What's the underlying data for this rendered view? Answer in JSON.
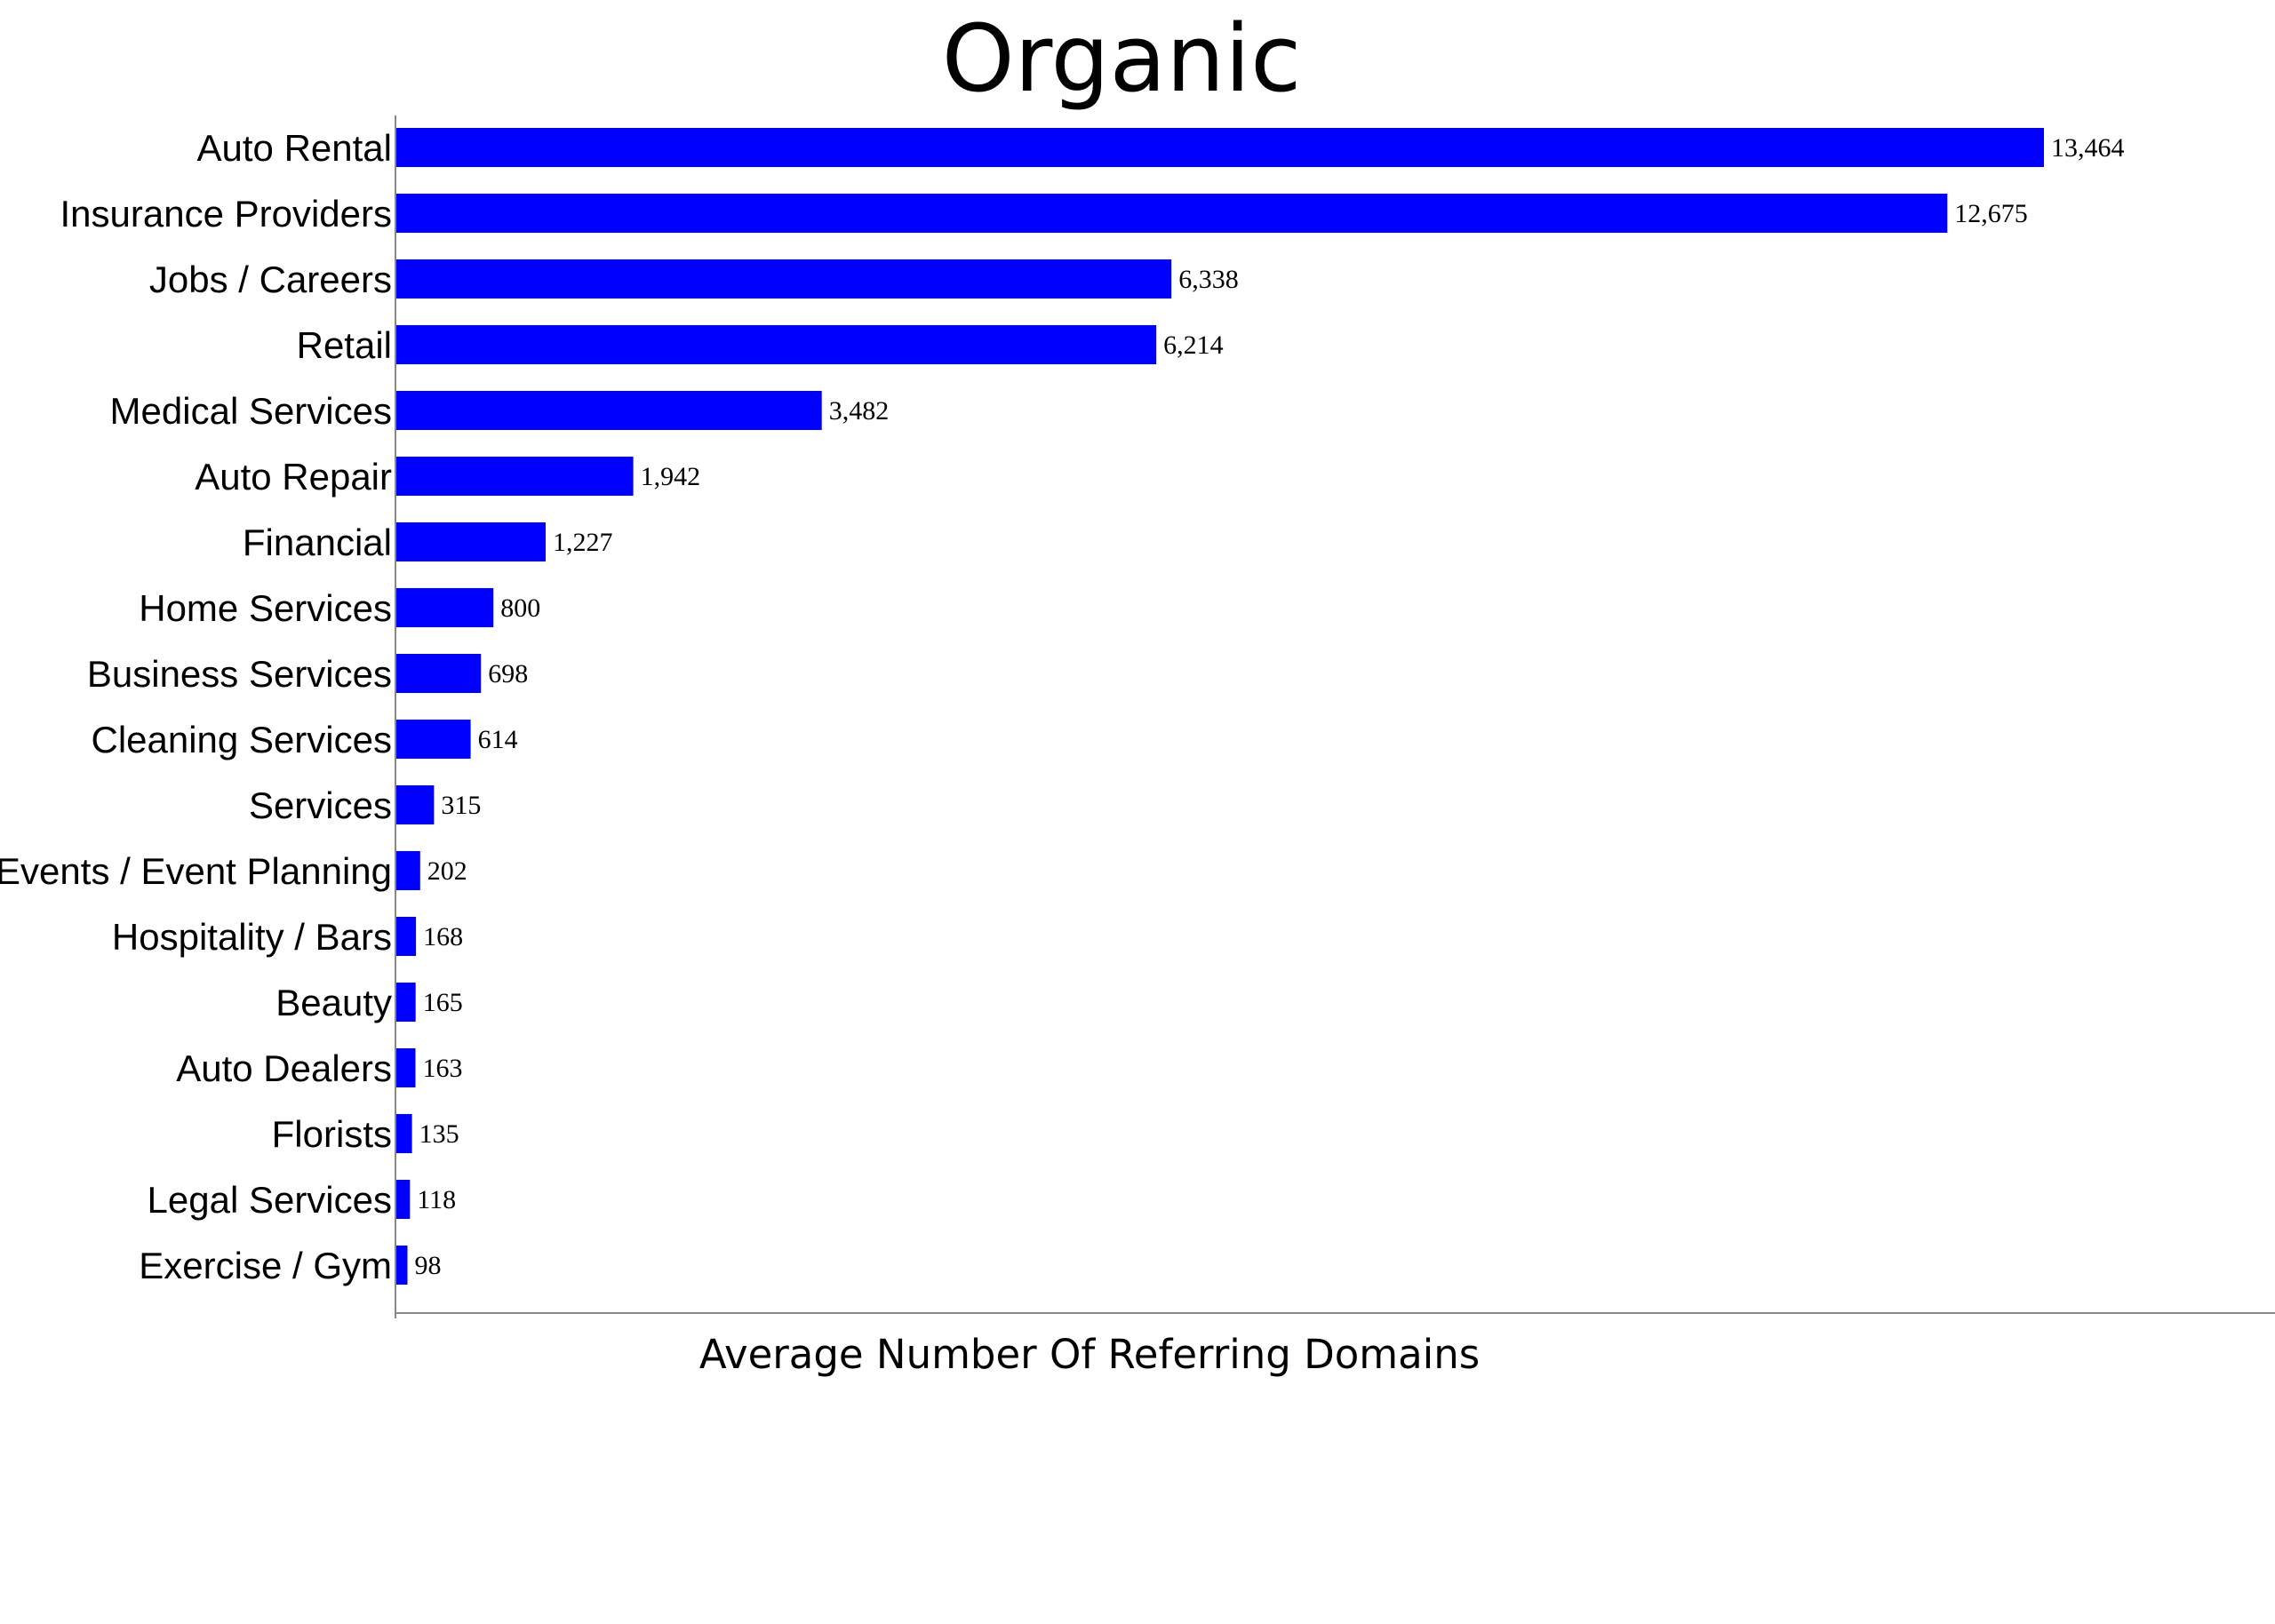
{
  "chart_data": {
    "type": "bar",
    "orientation": "horizontal",
    "title": "Organic",
    "xlabel": "Average Number Of Referring Domains",
    "ylabel": "",
    "bar_color": "#0000ff",
    "axis_color": "#888888",
    "grid": false,
    "legend": "none",
    "xlim": [
      0,
      15000
    ],
    "categories": [
      "Auto Rental",
      "Insurance Providers",
      "Jobs / Careers",
      "Retail",
      "Medical Services",
      "Auto Repair",
      "Financial",
      "Home Services",
      "Business Services",
      "Cleaning Services",
      "Services",
      "Events / Event Planning",
      "Hospitality / Bars",
      "Beauty",
      "Auto Dealers",
      "Florists",
      "Legal Services",
      "Exercise / Gym"
    ],
    "values": [
      13464,
      12675,
      6338,
      6214,
      3482,
      1942,
      1227,
      800,
      698,
      614,
      315,
      202,
      168,
      165,
      163,
      135,
      118,
      98
    ],
    "value_labels": [
      "13,464",
      "12,675",
      "6,338",
      "6,214",
      "3,482",
      "1,942",
      "1,227",
      "800",
      "698",
      "614",
      "315",
      "202",
      "168",
      "165",
      "163",
      "135",
      "118",
      "98"
    ]
  }
}
